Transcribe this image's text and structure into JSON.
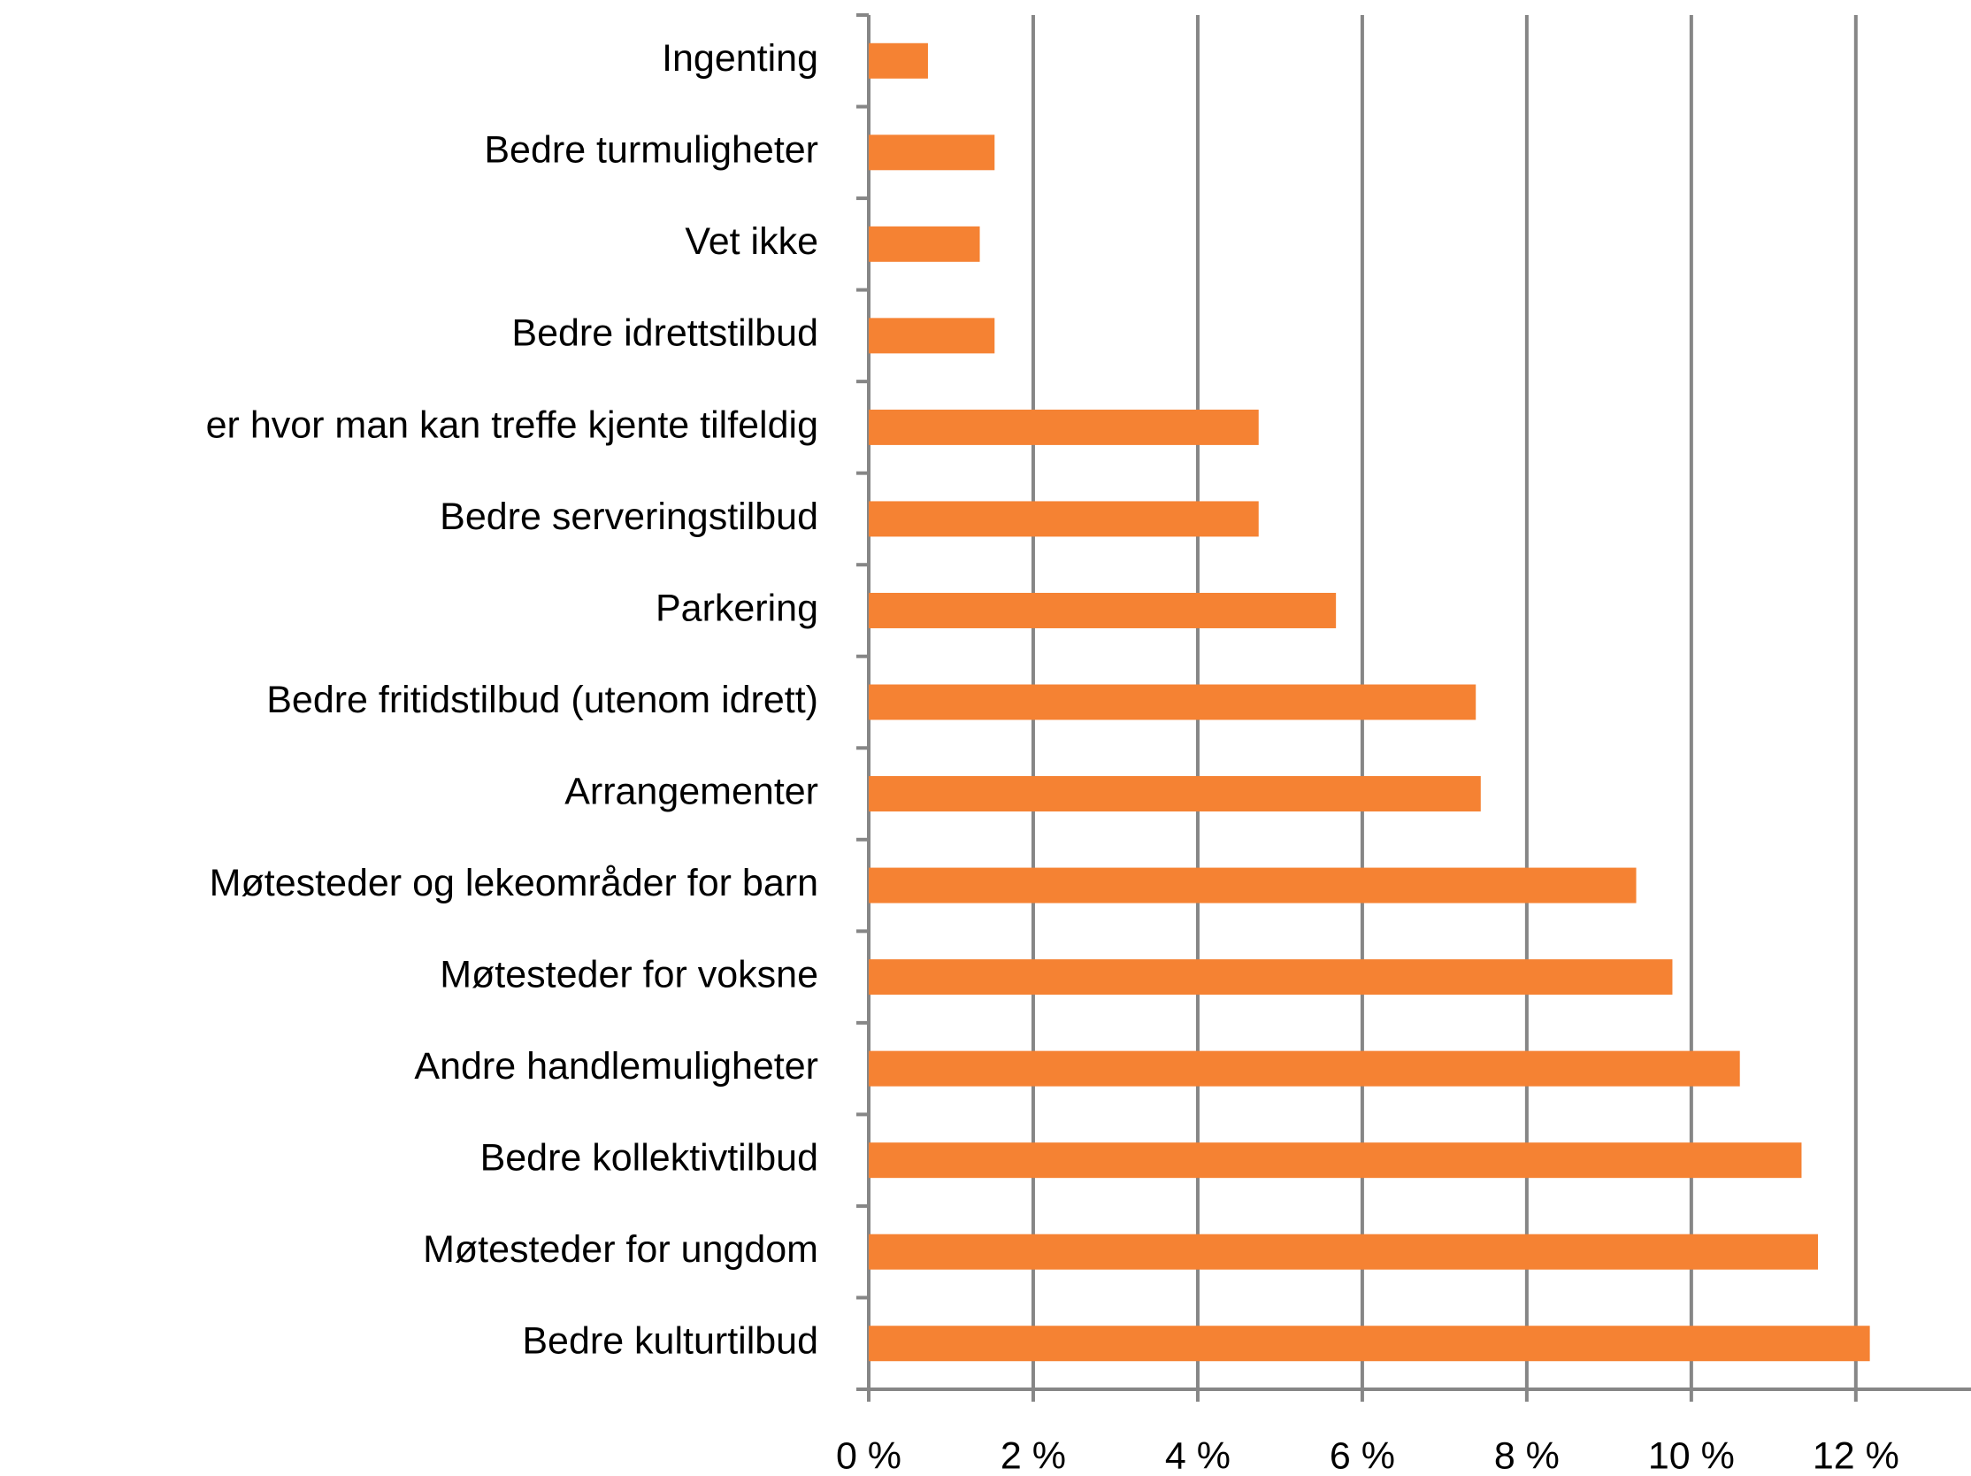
{
  "chart_data": {
    "type": "barh",
    "categories": [
      "Ingenting",
      "Bedre turmuligheter",
      "Vet ikke",
      "Bedre idrettstilbud",
      "er hvor man kan treffe kjente tilfeldig",
      "Bedre serveringstilbud",
      "Parkering",
      "Bedre fritidstilbud (utenom idrett)",
      "Arrangementer",
      "Møtesteder og lekeområder for barn",
      "Møtesteder for voksne",
      "Andre handlemuligheter",
      "Bedre kollektivtilbud",
      "Møtesteder for ungdom",
      "Bedre kulturtilbud"
    ],
    "values": [
      0.72,
      1.53,
      1.35,
      1.53,
      4.74,
      4.74,
      5.68,
      7.38,
      7.44,
      9.33,
      9.77,
      10.59,
      11.34,
      11.54,
      12.17
    ],
    "color": "#f58233",
    "xlim": [
      0,
      13.4
    ],
    "xticks": [
      {
        "value": 0,
        "label": "0 %"
      },
      {
        "value": 2,
        "label": "2 %"
      },
      {
        "value": 4,
        "label": "4 %"
      },
      {
        "value": 6,
        "label": "6 %"
      },
      {
        "value": 8,
        "label": "8 %"
      },
      {
        "value": 10,
        "label": "10 %"
      },
      {
        "value": 12,
        "label": "12 %"
      }
    ],
    "grid": true
  }
}
